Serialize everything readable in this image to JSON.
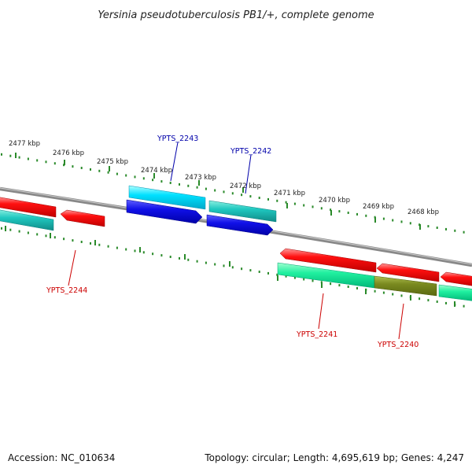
{
  "title": "Yersinia pseudotuberculosis PB1/+, complete genome",
  "footer": {
    "accession": "Accession: NC_010634",
    "topology": "Topology: circular; Length: 4,695,619 bp; Genes: 4,247"
  },
  "ticks_outer": [
    {
      "label": "2477 kbp"
    },
    {
      "label": "2476 kbp"
    },
    {
      "label": "2475 kbp"
    },
    {
      "label": "2474 kbp"
    },
    {
      "label": "2473 kbp"
    },
    {
      "label": "2472 kbp"
    },
    {
      "label": "2471 kbp"
    },
    {
      "label": "2470 kbp"
    },
    {
      "label": "2469 kbp"
    },
    {
      "label": "2468 kbp"
    }
  ],
  "gene_labels": [
    {
      "name": "YPTS_2243",
      "color": "#0000aa"
    },
    {
      "name": "YPTS_2242",
      "color": "#0000aa"
    },
    {
      "name": "YPTS_2244",
      "color": "#cc0000"
    },
    {
      "name": "YPTS_2241",
      "color": "#cc0000"
    },
    {
      "name": "YPTS_2240",
      "color": "#cc0000"
    }
  ],
  "colors": {
    "backbone": "#888888",
    "tick": "#2a8a2a",
    "forward_cds": "#ff0000",
    "reverse_cds": "#00e08a",
    "highlight_cds_a": "#00c8e0",
    "highlight_cds_b": "#1010e0",
    "olive_cds": "#7a8a20"
  }
}
